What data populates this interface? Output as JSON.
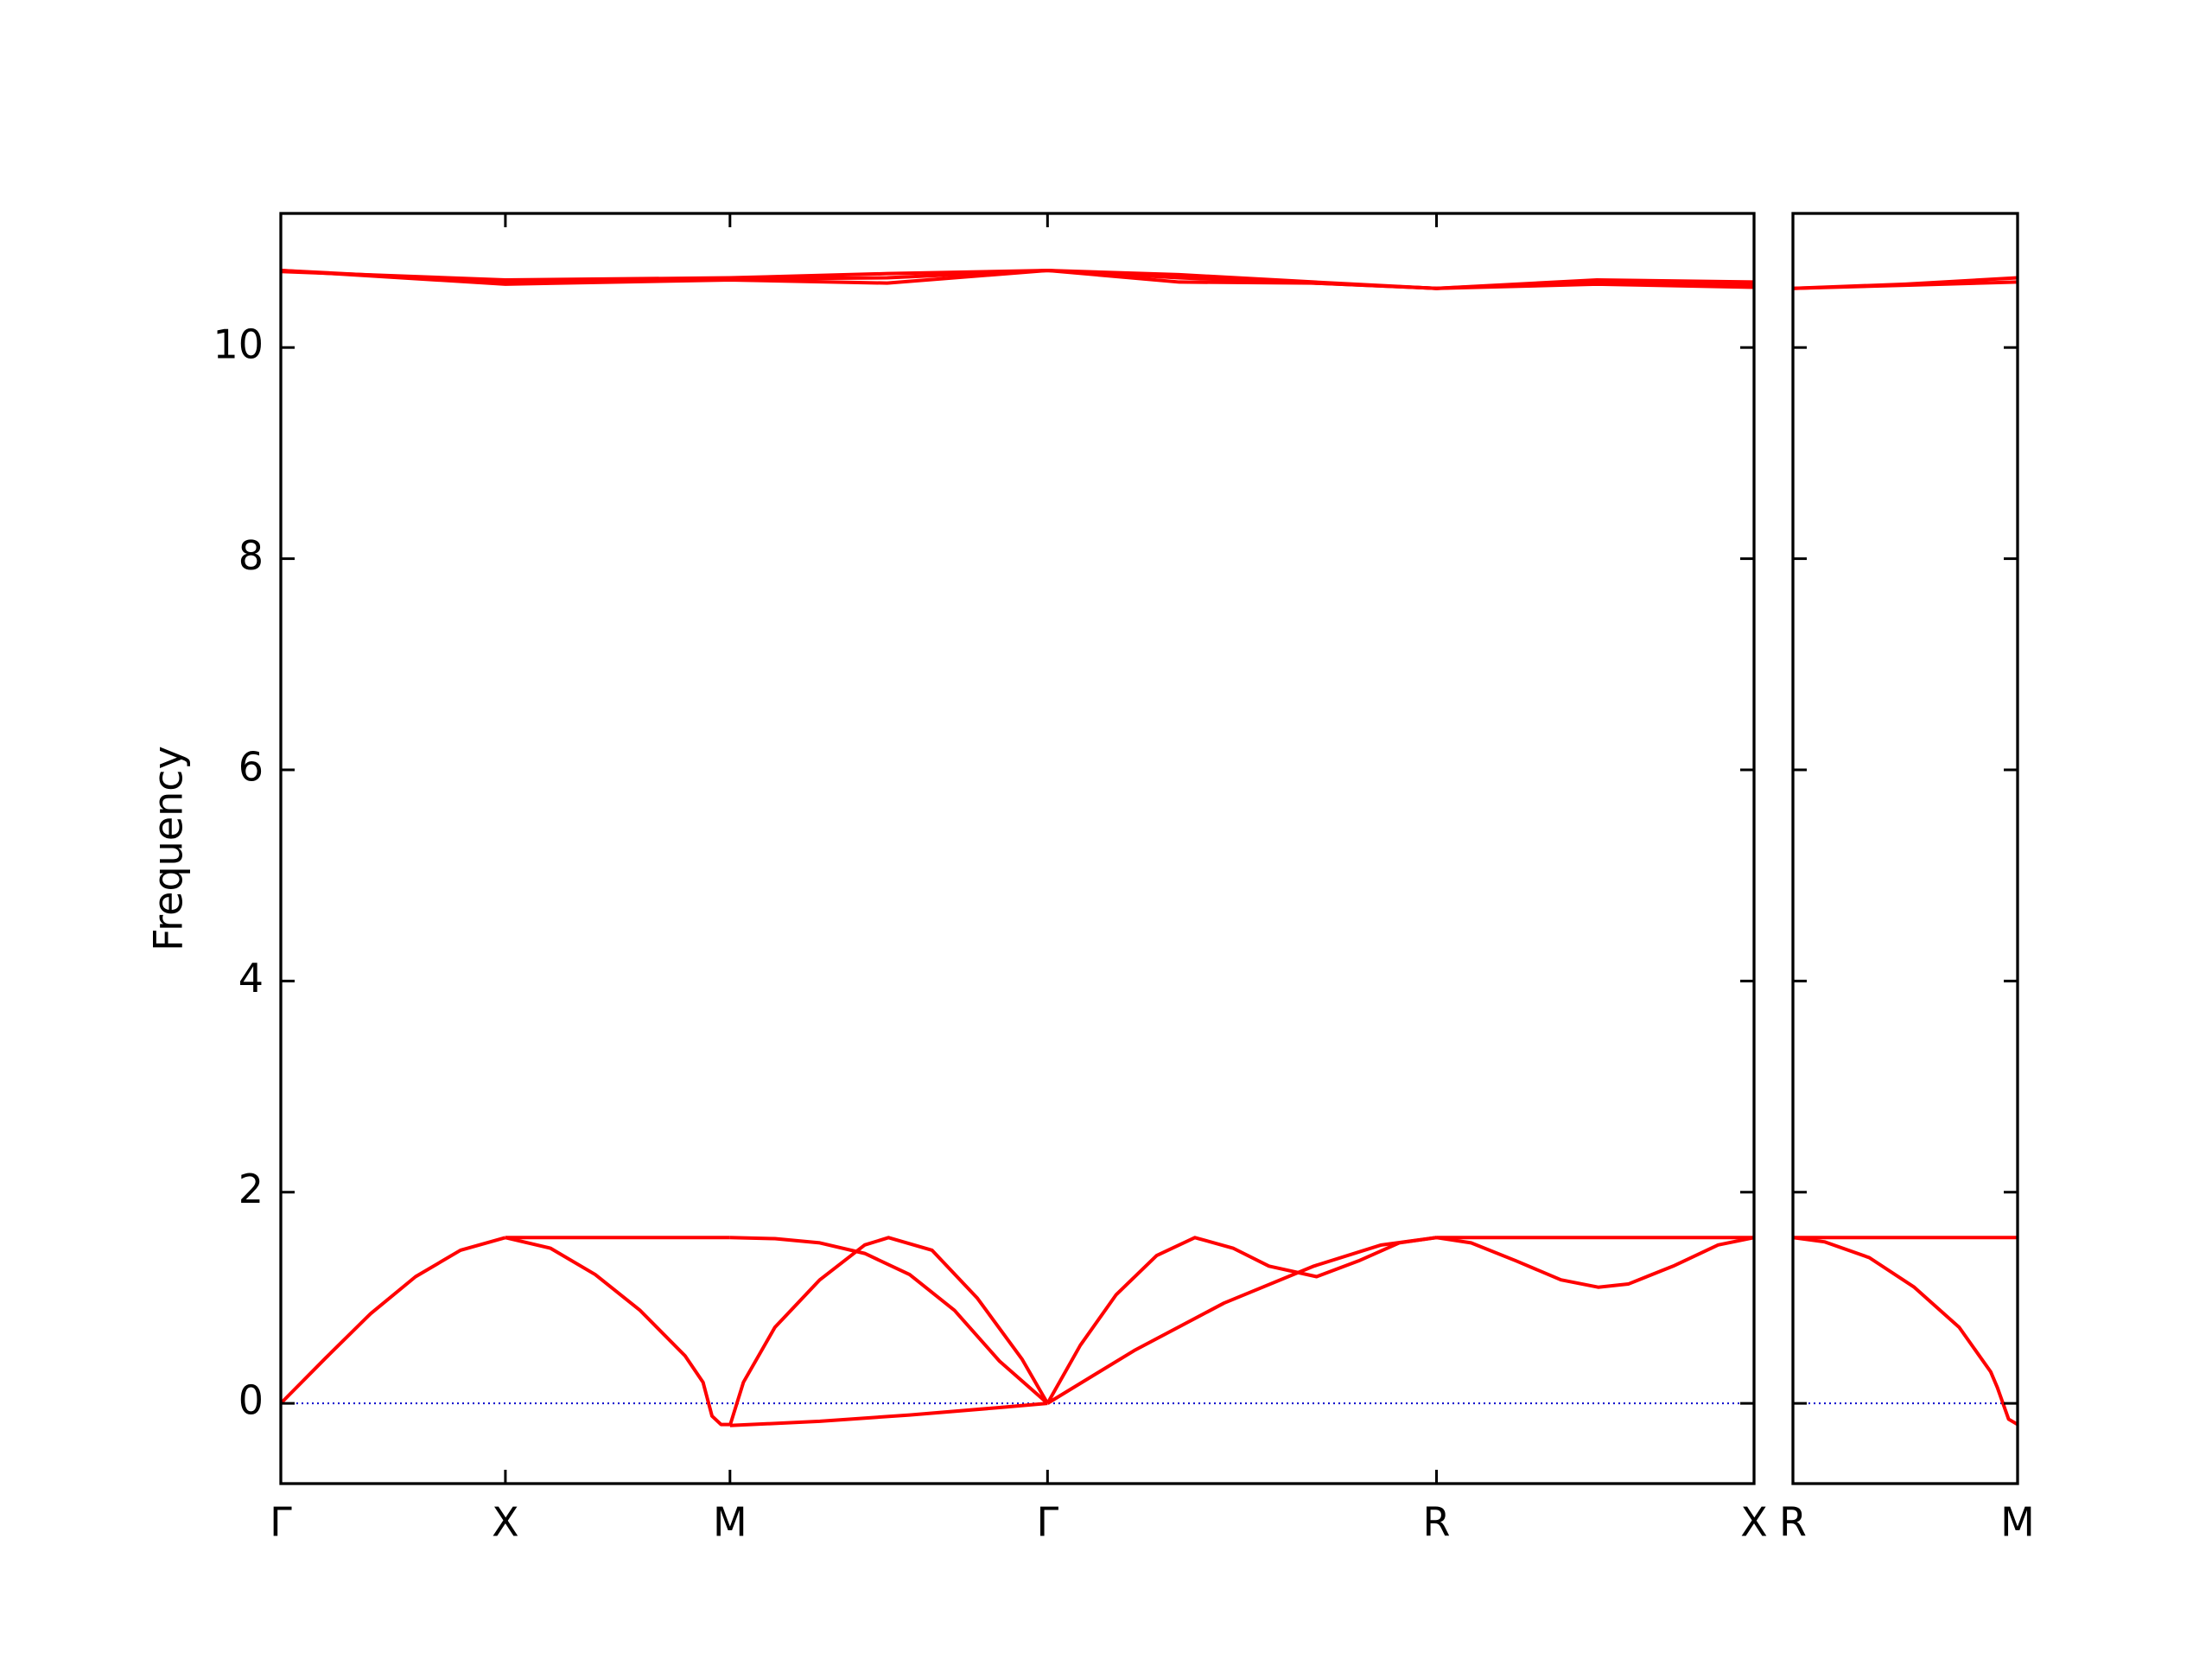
{
  "chart_data": {
    "type": "line",
    "ylabel": "Frequency",
    "color": "#ff0000",
    "ylim": [
      -0.76,
      11.27
    ],
    "yticks": [
      0,
      2,
      4,
      6,
      8,
      10
    ],
    "hline": {
      "value": 0,
      "color": "#0000cc"
    },
    "panels": [
      {
        "xlim": [
          0,
          3.28
        ],
        "xticks": [
          {
            "value": 0,
            "label": "Γ"
          },
          {
            "value": 0.5,
            "label": "X"
          },
          {
            "value": 1.0,
            "label": "M"
          },
          {
            "value": 1.707,
            "label": "Γ"
          },
          {
            "value": 2.573,
            "label": "R"
          },
          {
            "value": 3.28,
            "label": "X"
          }
        ],
        "series": [
          {
            "x": [
              0,
              0.1,
              0.2,
              0.3,
              0.4,
              0.5
            ],
            "values": [
              0,
              0.43,
              0.85,
              1.2,
              1.45,
              1.57
            ]
          },
          {
            "x": [
              0.5,
              1.0
            ],
            "values": [
              1.57,
              1.57
            ]
          },
          {
            "x": [
              0.5,
              0.6,
              0.7,
              0.8,
              0.9,
              0.94,
              0.96,
              0.98,
              1.0
            ],
            "values": [
              1.57,
              1.47,
              1.22,
              0.88,
              0.45,
              0.2,
              -0.12,
              -0.2,
              -0.2
            ]
          },
          {
            "x": [
              1.0,
              1.2,
              1.4,
              1.6,
              1.707
            ],
            "values": [
              -0.21,
              -0.17,
              -0.11,
              -0.04,
              0
            ]
          },
          {
            "x": [
              1.0,
              1.03,
              1.1,
              1.2,
              1.3,
              1.353,
              1.45,
              1.55,
              1.65,
              1.707
            ],
            "values": [
              -0.21,
              0.2,
              0.72,
              1.17,
              1.5,
              1.57,
              1.45,
              1.0,
              0.42,
              0
            ]
          },
          {
            "x": [
              1.0,
              1.1,
              1.2,
              1.3,
              1.4,
              1.5,
              1.6,
              1.707
            ],
            "values": [
              1.57,
              1.56,
              1.52,
              1.42,
              1.22,
              0.88,
              0.4,
              0
            ]
          },
          {
            "x": [
              1.707,
              1.78,
              1.86,
              1.95,
              2.035,
              2.12,
              2.2,
              2.306,
              2.4,
              2.49,
              2.573
            ],
            "values": [
              0,
              0.55,
              1.03,
              1.4,
              1.57,
              1.47,
              1.3,
              1.2,
              1.35,
              1.52,
              1.57
            ]
          },
          {
            "x": [
              1.707,
              1.9,
              2.1,
              2.3,
              2.45,
              2.573
            ],
            "values": [
              0,
              0.5,
              0.95,
              1.3,
              1.5,
              1.57
            ]
          },
          {
            "x": [
              2.573,
              3.28
            ],
            "values": [
              1.57,
              1.57
            ]
          },
          {
            "x": [
              2.573,
              2.65,
              2.75,
              2.85,
              2.933,
              3.0,
              3.1,
              3.2,
              3.28
            ],
            "values": [
              1.57,
              1.52,
              1.35,
              1.17,
              1.1,
              1.13,
              1.3,
              1.5,
              1.57
            ]
          },
          {
            "x": [
              0,
              0.5,
              1.0,
              1.35,
              1.707,
              2.0,
              2.3,
              2.573,
              2.93,
              3.28
            ],
            "values": [
              10.73,
              10.6,
              10.64,
              10.61,
              10.73,
              10.62,
              10.61,
              10.56,
              10.6,
              10.57
            ]
          },
          {
            "x": [
              0,
              0.5,
              1.0,
              1.35,
              1.707,
              2.0,
              2.3,
              2.573,
              2.93,
              3.28
            ],
            "values": [
              10.73,
              10.62,
              10.65,
              10.66,
              10.73,
              10.66,
              10.61,
              10.56,
              10.63,
              10.6
            ]
          },
          {
            "x": [
              0,
              0.5,
              1.0,
              1.35,
              1.707,
              2.0,
              2.3,
              2.573,
              2.93,
              3.28
            ],
            "values": [
              10.72,
              10.64,
              10.66,
              10.7,
              10.73,
              10.69,
              10.62,
              10.56,
              10.64,
              10.62
            ]
          }
        ]
      },
      {
        "xlim": [
          3.28,
          3.78
        ],
        "xticks": [
          {
            "value": 3.28,
            "label": "R"
          },
          {
            "value": 3.78,
            "label": "M"
          }
        ],
        "series": [
          {
            "x": [
              3.28,
              3.78
            ],
            "values": [
              1.57,
              1.57
            ]
          },
          {
            "x": [
              3.28,
              3.35,
              3.45,
              3.55,
              3.65,
              3.72,
              3.735,
              3.76,
              3.78
            ],
            "values": [
              1.57,
              1.53,
              1.38,
              1.1,
              0.72,
              0.3,
              0.15,
              -0.15,
              -0.2
            ]
          },
          {
            "x": [
              3.28,
              3.53,
              3.78
            ],
            "values": [
              10.56,
              10.6,
              10.66
            ]
          },
          {
            "x": [
              3.28,
              3.53,
              3.78
            ],
            "values": [
              10.56,
              10.59,
              10.62
            ]
          }
        ]
      }
    ]
  }
}
